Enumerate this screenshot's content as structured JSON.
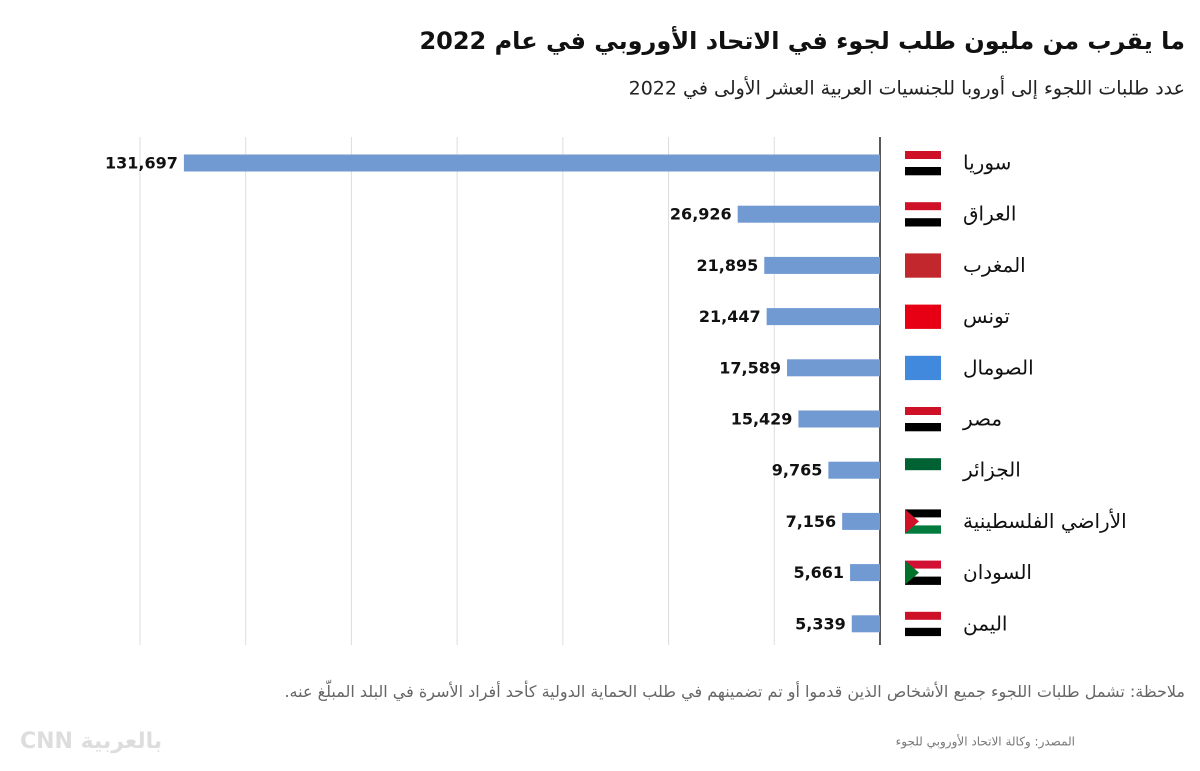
{
  "chart_data": {
    "type": "bar",
    "orientation": "horizontal",
    "title": "ما يقرب من مليون طلب لجوء في الاتحاد الأوروبي في عام 2022",
    "subtitle": "عدد طلبات اللجوء إلى أوروبا للجنسيات العربية العشر الأولى في 2022",
    "categories": [
      "سوريا",
      "العراق",
      "المغرب",
      "تونس",
      "الصومال",
      "مصر",
      "الجزائر",
      "الأراضي الفلسطينية",
      "السودان",
      "اليمن"
    ],
    "values": [
      131697,
      26926,
      21895,
      21447,
      17589,
      15429,
      9765,
      7156,
      5661,
      5339
    ],
    "value_labels": [
      "131,697",
      "26,926",
      "21,895",
      "21,447",
      "17,589",
      "15,429",
      "9,765",
      "7,156",
      "5,661",
      "5,339"
    ],
    "color": "#7199d2",
    "xlim": [
      0,
      140000
    ],
    "xticks": [
      0,
      20000,
      40000,
      60000,
      80000,
      100000,
      120000,
      140000
    ],
    "grid": true,
    "note": "ملاحظة: تشمل طلبات اللجوء جميع الأشخاص الذين قدموا أو تم تضمينهم في طلب الحماية الدولية كأحد أفراد الأسرة في البلد المبلّغ عنه.",
    "source": "المصدر: وكالة الاتحاد الأوروبي للجوء",
    "logo": "CNN بالعربية"
  }
}
